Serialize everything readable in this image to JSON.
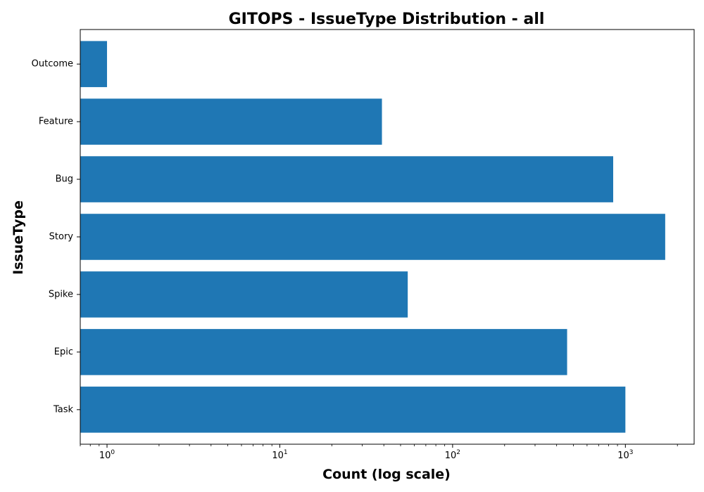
{
  "chart_data": {
    "type": "bar",
    "orientation": "horizontal",
    "title": "GITOPS - IssueType Distribution - all",
    "xlabel": "Count (log scale)",
    "ylabel": "IssueType",
    "xscale": "log",
    "xlim": [
      0.7,
      2500
    ],
    "categories": [
      "Task",
      "Epic",
      "Spike",
      "Story",
      "Bug",
      "Feature",
      "Outcome"
    ],
    "values": [
      1000,
      460,
      55,
      1700,
      850,
      39,
      1
    ],
    "xticks": [
      {
        "base": "10",
        "exp": "0",
        "value": 1
      },
      {
        "base": "10",
        "exp": "1",
        "value": 10
      },
      {
        "base": "10",
        "exp": "2",
        "value": 100
      },
      {
        "base": "10",
        "exp": "3",
        "value": 1000
      }
    ],
    "grid": false,
    "colors": {
      "bar": "#1f77b4",
      "axis": "#000000"
    }
  }
}
